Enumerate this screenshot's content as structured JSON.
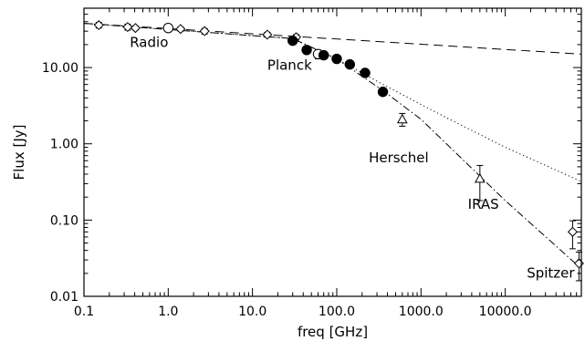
{
  "chart_data": {
    "type": "scatter",
    "title": "",
    "xlabel": "freq [GHz]",
    "ylabel": "Flux [Jy]",
    "xscale": "log",
    "yscale": "log",
    "xlim": [
      0.1,
      80000
    ],
    "ylim": [
      0.01,
      60
    ],
    "grid": false,
    "x_tick_labels": [
      {
        "value": 0.1,
        "label": "0.1"
      },
      {
        "value": 1,
        "label": "1.0"
      },
      {
        "value": 10,
        "label": "10.0"
      },
      {
        "value": 100,
        "label": "100.0"
      },
      {
        "value": 1000,
        "label": "1000.0"
      },
      {
        "value": 10000,
        "label": "10000.0"
      }
    ],
    "y_tick_labels": [
      {
        "value": 0.01,
        "label": "0.01"
      },
      {
        "value": 0.1,
        "label": "0.10"
      },
      {
        "value": 1,
        "label": "1.00"
      },
      {
        "value": 10,
        "label": "10.00"
      }
    ],
    "annotations": [
      {
        "text": "Radio",
        "x": 0.35,
        "y": 18.5
      },
      {
        "text": "Planck",
        "x": 15,
        "y": 9.3
      },
      {
        "text": "Herschel",
        "x": 240,
        "y": 0.57
      },
      {
        "text": "IRAS",
        "x": 3600,
        "y": 0.141
      },
      {
        "text": "Spitzer",
        "x": 18000,
        "y": 0.0176
      }
    ],
    "series": [
      {
        "label": "Radio",
        "marker": "diamond-open",
        "points": [
          {
            "x": 0.15,
            "y": 36,
            "yerr": 3
          },
          {
            "x": 0.33,
            "y": 34,
            "yerr": 3
          },
          {
            "x": 0.408,
            "y": 33,
            "yerr": 2
          },
          {
            "x": 1.4,
            "y": 32,
            "yerr": 2
          },
          {
            "x": 2.7,
            "y": 30,
            "yerr": 2.5
          },
          {
            "x": 15,
            "y": 27,
            "yerr": 2
          },
          {
            "x": 33,
            "y": 25,
            "yerr": 2
          }
        ]
      },
      {
        "label": "Radio",
        "marker": "circle-open",
        "points": [
          {
            "x": 1.0,
            "y": 33,
            "yerr": 0
          },
          {
            "x": 60,
            "y": 15,
            "yerr": 2
          }
        ]
      },
      {
        "label": "Planck",
        "marker": "circle-filled",
        "points": [
          {
            "x": 30,
            "y": 22.5,
            "yerr": 0
          },
          {
            "x": 44,
            "y": 17,
            "yerr": 0
          },
          {
            "x": 70,
            "y": 14.5,
            "yerr": 0
          },
          {
            "x": 100,
            "y": 13,
            "yerr": 0
          },
          {
            "x": 143,
            "y": 11,
            "yerr": 0
          },
          {
            "x": 217,
            "y": 8.5,
            "yerr": 0
          },
          {
            "x": 353,
            "y": 4.8,
            "yerr": 0.5
          }
        ]
      },
      {
        "label": "Herschel",
        "marker": "triangle-open",
        "points": [
          {
            "x": 600,
            "y": 2.1,
            "yerr": 0.4
          }
        ]
      },
      {
        "label": "IRAS",
        "marker": "triangle-open",
        "points": [
          {
            "x": 5000,
            "y": 0.35,
            "yerr": 0.17
          }
        ]
      },
      {
        "label": "Spitzer",
        "marker": "diamond-open",
        "points": [
          {
            "x": 63000,
            "y": 0.07,
            "yerr": 0.028
          },
          {
            "x": 75000,
            "y": 0.027,
            "yerr": 0.011
          }
        ]
      }
    ],
    "model_lines": [
      {
        "style": "dashed",
        "points": [
          [
            0.1,
            38
          ],
          [
            80000,
            15
          ]
        ]
      },
      {
        "style": "dotted",
        "points": [
          [
            0.1,
            38
          ],
          [
            30,
            24
          ],
          [
            100,
            13
          ],
          [
            353,
            6
          ],
          [
            2000,
            2.2
          ],
          [
            10000,
            0.9
          ],
          [
            80000,
            0.32
          ]
        ]
      },
      {
        "style": "dash-dot",
        "points": [
          [
            0.1,
            38
          ],
          [
            30,
            24
          ],
          [
            100,
            13
          ],
          [
            353,
            5
          ],
          [
            1000,
            2.1
          ],
          [
            10000,
            0.18
          ],
          [
            80000,
            0.023
          ]
        ]
      }
    ]
  }
}
